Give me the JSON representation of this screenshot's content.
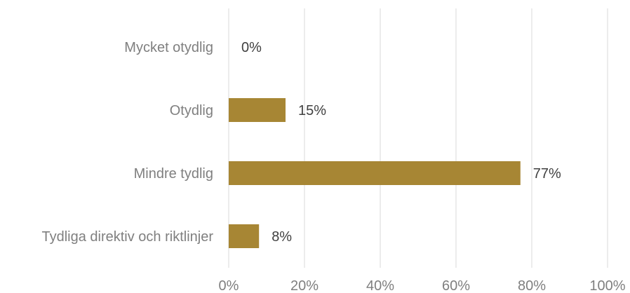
{
  "chart_data": {
    "type": "bar",
    "orientation": "horizontal",
    "categories": [
      "Mycket otydlig",
      "Otydlig",
      "Mindre tydlig",
      "Tydliga direktiv och riktlinjer"
    ],
    "values": [
      0,
      15,
      77,
      8
    ],
    "data_labels": [
      "0%",
      "15%",
      "77%",
      "8%"
    ],
    "xlim": [
      0,
      100
    ],
    "x_ticks": [
      0,
      20,
      40,
      60,
      80,
      100
    ],
    "x_tick_labels": [
      "0%",
      "20%",
      "40%",
      "60%",
      "80%",
      "100%"
    ],
    "grid": true,
    "bar_color": "#a78634",
    "title": "",
    "xlabel": "",
    "ylabel": ""
  }
}
